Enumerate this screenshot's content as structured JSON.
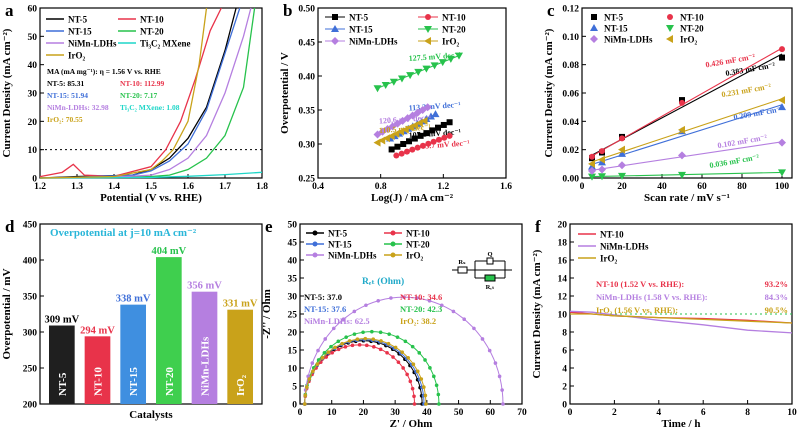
{
  "chart_data": [
    {
      "panel": "a",
      "type": "line",
      "xlabel": "Potential (V vs. RHE)",
      "ylabel": "Current Density (mA cm⁻²)",
      "xlim": [
        1.2,
        1.8
      ],
      "ylim": [
        0,
        60
      ],
      "xticks": [
        "1.2",
        "1.3",
        "1.4",
        "1.5",
        "1.6",
        "1.7",
        "1.8"
      ],
      "yticks": [
        "0",
        "10",
        "20",
        "30",
        "40",
        "50",
        "60"
      ],
      "reference_line": 10,
      "series": [
        {
          "name": "NT-5",
          "color": "#000000",
          "x": [
            1.2,
            1.3,
            1.45,
            1.5,
            1.55,
            1.6,
            1.65,
            1.7,
            1.73
          ],
          "y": [
            0,
            0.5,
            1,
            3,
            7,
            14,
            25,
            45,
            60
          ]
        },
        {
          "name": "NT-10",
          "color": "#e8334a",
          "x": [
            1.2,
            1.26,
            1.29,
            1.32,
            1.4,
            1.5,
            1.54,
            1.58,
            1.62,
            1.66,
            1.69
          ],
          "y": [
            0.5,
            2,
            4.8,
            1,
            0.6,
            4,
            10,
            20,
            35,
            52,
            60
          ]
        },
        {
          "name": "NT-15",
          "color": "#3f6fd8",
          "x": [
            1.2,
            1.3,
            1.45,
            1.5,
            1.55,
            1.6,
            1.65,
            1.7,
            1.74
          ],
          "y": [
            0,
            0.3,
            1,
            2.5,
            6,
            12,
            24,
            44,
            60
          ]
        },
        {
          "name": "NT-20",
          "color": "#27c24c",
          "x": [
            1.2,
            1.4,
            1.5,
            1.55,
            1.6,
            1.65,
            1.7,
            1.75,
            1.78
          ],
          "y": [
            0,
            0.2,
            0.5,
            1,
            3,
            7,
            15,
            32,
            60
          ]
        },
        {
          "name": "NiMn-LDHs",
          "color": "#b57fe0",
          "x": [
            1.2,
            1.4,
            1.5,
            1.55,
            1.6,
            1.65,
            1.7,
            1.75,
            1.77
          ],
          "y": [
            0,
            0.3,
            1,
            3,
            7,
            15,
            30,
            50,
            60
          ]
        },
        {
          "name": "Ti₃C₂ MXene",
          "color": "#1fd6c8",
          "x": [
            1.2,
            1.5,
            1.6,
            1.7,
            1.8
          ],
          "y": [
            0,
            0.2,
            0.6,
            1.2,
            2
          ]
        },
        {
          "name": "IrO₂",
          "color": "#c9a21a",
          "x": [
            1.2,
            1.4,
            1.5,
            1.53,
            1.56,
            1.6,
            1.63,
            1.65
          ],
          "y": [
            0,
            0.5,
            3,
            6,
            10,
            20,
            40,
            60
          ]
        }
      ],
      "annotation_title": "MA (mA mg⁻¹): η = 1.56 V vs. RHE",
      "annotations": [
        {
          "text": "NT-5:   85.31",
          "color": "#000000"
        },
        {
          "text": "NT-10: 112.99",
          "color": "#e8334a"
        },
        {
          "text": "NT-15: 51.94",
          "color": "#3f6fd8"
        },
        {
          "text": "NT-20: 7.17",
          "color": "#27c24c"
        },
        {
          "text": "NiMn-LDHs: 32.98",
          "color": "#b57fe0"
        },
        {
          "text": "Ti₃C₂ MXene: 1.08",
          "color": "#1fd6c8"
        },
        {
          "text": "IrO₂: 70.55",
          "color": "#c9a21a"
        }
      ]
    },
    {
      "panel": "b",
      "type": "line",
      "xlabel": "Log(J) / mA cm⁻²",
      "ylabel": "Overpotential / V",
      "xlim": [
        0.4,
        1.6
      ],
      "ylim": [
        0.25,
        0.5
      ],
      "xticks": [
        "0.4",
        "0.8",
        "1.2",
        "1.6"
      ],
      "yticks": [
        "0.25",
        "0.30",
        "0.35",
        "0.40",
        "0.45",
        "0.50"
      ],
      "series": [
        {
          "name": "NT-5",
          "color": "#000000",
          "marker": "square",
          "x0": 0.87,
          "y0": 0.292,
          "x1": 1.24,
          "y1": 0.332,
          "slope_label": "107.1 mV dec⁻¹"
        },
        {
          "name": "NT-10",
          "color": "#e8334a",
          "marker": "circle",
          "x0": 0.9,
          "y0": 0.283,
          "x1": 1.24,
          "y1": 0.312,
          "slope_label": "83.7 mV dec⁻¹"
        },
        {
          "name": "NT-15",
          "color": "#3f6fd8",
          "marker": "triangle",
          "x0": 0.86,
          "y0": 0.308,
          "x1": 1.15,
          "y1": 0.344,
          "slope_label": "113.3 mV dec⁻¹"
        },
        {
          "name": "NT-20",
          "color": "#27c24c",
          "marker": "triangle-down",
          "x0": 0.78,
          "y0": 0.382,
          "x1": 1.3,
          "y1": 0.43,
          "slope_label": "127.5 mV dec⁻¹"
        },
        {
          "name": "NiMn-LDHs",
          "color": "#b57fe0",
          "marker": "diamond",
          "x0": 0.78,
          "y0": 0.314,
          "x1": 1.1,
          "y1": 0.354,
          "slope_label": "120.6 mV dec⁻¹"
        },
        {
          "name": "IrO₂",
          "color": "#c9a21a",
          "marker": "left-triangle",
          "x0": 0.78,
          "y0": 0.302,
          "x1": 1.08,
          "y1": 0.334,
          "slope_label": "110.5 mV dec⁻¹"
        }
      ]
    },
    {
      "panel": "c",
      "type": "scatter",
      "xlabel": "Scan rate / mV s⁻¹",
      "ylabel": "Current Density (mA cm⁻²)",
      "xlim": [
        0,
        105
      ],
      "ylim": [
        0,
        0.12
      ],
      "xticks": [
        "0",
        "20",
        "40",
        "60",
        "80",
        "100"
      ],
      "yticks": [
        "0.00",
        "0.02",
        "0.04",
        "0.06",
        "0.08",
        "0.10",
        "0.12"
      ],
      "x": [
        5,
        10,
        20,
        50,
        100
      ],
      "series": [
        {
          "name": "NT-5",
          "color": "#000000",
          "marker": "square",
          "values": [
            0.014,
            0.018,
            0.029,
            0.055,
            0.085
          ],
          "slope_label": "0.383 mF cm⁻²"
        },
        {
          "name": "NT-10",
          "color": "#e8334a",
          "marker": "circle",
          "values": [
            0.015,
            0.019,
            0.028,
            0.053,
            0.091
          ],
          "slope_label": "0.426 mF cm⁻²"
        },
        {
          "name": "NT-15",
          "color": "#3f6fd8",
          "marker": "triangle",
          "values": [
            0.008,
            0.011,
            0.017,
            0.033,
            0.05
          ],
          "slope_label": "0.209 mF cm⁻²"
        },
        {
          "name": "NT-20",
          "color": "#27c24c",
          "marker": "triangle-down",
          "values": [
            0.001,
            0.0012,
            0.0015,
            0.0022,
            0.004
          ],
          "slope_label": "0.036 mF cm⁻²"
        },
        {
          "name": "NiMn-LDHs",
          "color": "#b57fe0",
          "marker": "diamond",
          "values": [
            0.005,
            0.006,
            0.009,
            0.016,
            0.025
          ],
          "slope_label": "0.102 mF cm⁻²"
        },
        {
          "name": "IrO₂",
          "color": "#c9a21a",
          "marker": "left-triangle",
          "values": [
            0.01,
            0.013,
            0.02,
            0.034,
            0.055
          ],
          "slope_label": "0.231 mF cm⁻²"
        }
      ]
    },
    {
      "panel": "d",
      "type": "bar",
      "title": "Overpotential at j=10 mA cm⁻²",
      "xlabel": "Catalysts",
      "ylabel": "Overpotential / mV",
      "ylim": [
        200,
        450
      ],
      "yticks": [
        "200",
        "250",
        "300",
        "350",
        "400",
        "450"
      ],
      "categories": [
        "NT-5",
        "NT-10",
        "NT-15",
        "NT-20",
        "NiMn-LDHs",
        "IrO₂"
      ],
      "values": [
        309,
        294,
        338,
        404,
        356,
        331
      ],
      "labels": [
        "309 mV",
        "294 mV",
        "338 mV",
        "404 mV",
        "356 mV",
        "331 mV"
      ],
      "colors": [
        "#1f1f1f",
        "#e8334a",
        "#3f8fe0",
        "#3fcf4e",
        "#b57fe0",
        "#c9a21a"
      ]
    },
    {
      "panel": "e",
      "type": "scatter",
      "xlabel": "Z' / Ohm",
      "ylabel": "-Z'' / Ohm",
      "xlim": [
        0,
        70
      ],
      "ylim": [
        0,
        50
      ],
      "xticks": [
        "0",
        "10",
        "20",
        "30",
        "40",
        "50",
        "60",
        "70"
      ],
      "yticks": [
        "0",
        "5",
        "10",
        "15",
        "20",
        "25",
        "30",
        "35",
        "40",
        "45",
        "50"
      ],
      "rct_title": "Rₑₜ (Ohm)",
      "circuit_labels": [
        "Rₛ",
        "Q",
        "Rₑₜ"
      ],
      "series": [
        {
          "name": "NT-5",
          "color": "#000000",
          "rct": 37.0,
          "rct_label": "NT-5:  37.0"
        },
        {
          "name": "NT-10",
          "color": "#e8334a",
          "rct": 34.6,
          "rct_label": "NT-10:  34.6"
        },
        {
          "name": "NT-15",
          "color": "#3f6fd8",
          "rct": 37.6,
          "rct_label": "NT-15:  37.6"
        },
        {
          "name": "NT-20",
          "color": "#27c24c",
          "rct": 42.3,
          "rct_label": "NT-20:  42.3"
        },
        {
          "name": "NiMn-LDHs",
          "color": "#b57fe0",
          "rct": 62.5,
          "rct_label": "NiMn-LDHs: 62.5"
        },
        {
          "name": "IrO₂",
          "color": "#c9a21a",
          "rct": 38.2,
          "rct_label": "IrO₂:  38.2"
        }
      ]
    },
    {
      "panel": "f",
      "type": "line",
      "xlabel": "Time / h",
      "ylabel": "Current Density (mA cm⁻²)",
      "xlim": [
        0,
        10
      ],
      "ylim": [
        0,
        20
      ],
      "xticks": [
        "0",
        "2",
        "4",
        "6",
        "8",
        "10"
      ],
      "yticks": [
        "0",
        "2",
        "4",
        "6",
        "8",
        "10",
        "12",
        "14",
        "16",
        "18",
        "20"
      ],
      "series": [
        {
          "name": "NT-10",
          "color": "#e8334a",
          "x": [
            0,
            1,
            2,
            4,
            6,
            8,
            10
          ],
          "y": [
            10.2,
            10,
            9.8,
            9.6,
            9.5,
            9.3,
            9.0
          ],
          "retention_label": "NT-10 (1.52 V vs. RHE):",
          "retention": "93.2%"
        },
        {
          "name": "NiMn-LDHs",
          "color": "#b57fe0",
          "x": [
            0,
            1,
            2,
            4,
            6,
            8,
            10
          ],
          "y": [
            10.3,
            10.2,
            9.9,
            9.3,
            8.8,
            8.2,
            7.9
          ],
          "retention_label": "NiMn-LDHs (1.58 V vs. RHE):",
          "retention": "84.3%"
        },
        {
          "name": "IrO₂",
          "color": "#c9a21a",
          "x": [
            0,
            1,
            2,
            4,
            6,
            8,
            10
          ],
          "y": [
            10,
            10,
            9.8,
            9.6,
            9.4,
            9.2,
            9.0
          ],
          "retention_label": "IrO₂ (1.56 V vs. RHE):",
          "retention": "90.5%"
        }
      ]
    }
  ],
  "panel_letters": [
    "a",
    "b",
    "c",
    "d",
    "e",
    "f"
  ]
}
